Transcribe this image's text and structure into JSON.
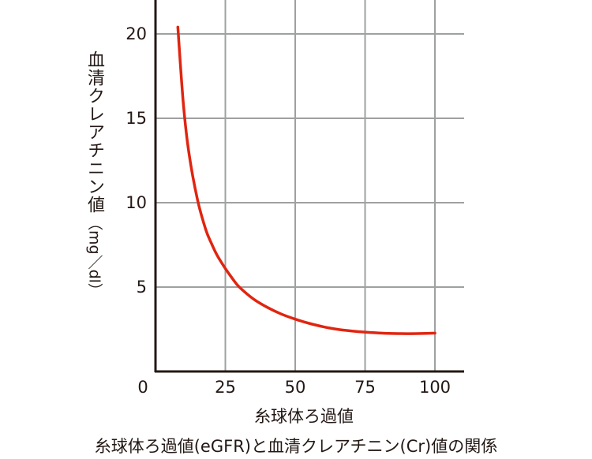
{
  "chart_data": {
    "type": "line",
    "title": "",
    "xlabel": "糸球体ろ過値",
    "ylabel": "血清クレアチニン値",
    "yunit": "（mg／dl）",
    "xlim": [
      0,
      100
    ],
    "ylim": [
      0,
      22
    ],
    "xticks": [
      0,
      25,
      50,
      75,
      100
    ],
    "yticks": [
      5,
      10,
      15,
      20
    ],
    "grid": true,
    "line_color": "#e02510",
    "grid_color": "#9fa0a0",
    "axis_color": "#231815",
    "series": [
      {
        "x": [
          8,
          10,
          12,
          15,
          18,
          20,
          22,
          25,
          28,
          30,
          35,
          40,
          45,
          50,
          55,
          60,
          65,
          70,
          75,
          80,
          85,
          90,
          95,
          100
        ],
        "y": [
          20.4,
          15.8,
          12.9,
          10.2,
          8.4,
          7.6,
          6.9,
          6.1,
          5.4,
          5.0,
          4.3,
          3.8,
          3.4,
          3.1,
          2.85,
          2.65,
          2.5,
          2.4,
          2.33,
          2.28,
          2.25,
          2.24,
          2.25,
          2.27
        ]
      }
    ]
  },
  "caption": "糸球体ろ過値(eGFR)と血清クレアチニン(Cr)値の関係"
}
